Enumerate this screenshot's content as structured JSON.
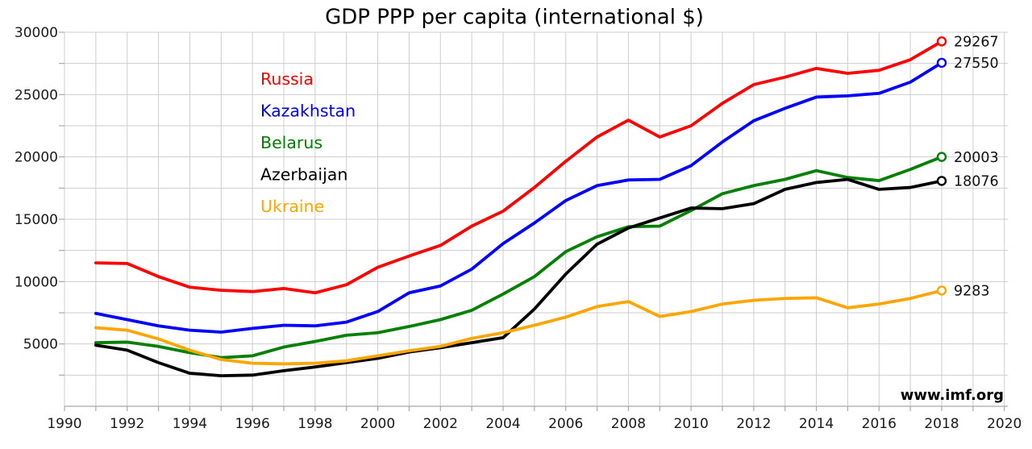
{
  "title": "GDP PPP per capita (international $)",
  "source_watermark": "www.imf.org",
  "style": {
    "gridline_color": "#cdcdcd",
    "axis_color": "#a9a9a9",
    "tick_label_color": "#1a1a1a",
    "end_label_color": "#111111",
    "source_color": "#0000dd",
    "background": "#ffffff"
  },
  "chart_data": {
    "type": "line",
    "title": "GDP PPP per capita (international $)",
    "xlabel": "",
    "ylabel": "",
    "xlim": [
      1990,
      2020
    ],
    "ylim": [
      0,
      30000
    ],
    "x_grid_step": 1,
    "x_label_step": 2,
    "y_grid_step": 2500,
    "y_label_step": 5000,
    "grid": true,
    "legend_position": "upper-left-inside",
    "end_markers": "open-circle",
    "x": [
      1991,
      1992,
      1993,
      1994,
      1995,
      1996,
      1997,
      1998,
      1999,
      2000,
      2001,
      2002,
      2003,
      2004,
      2005,
      2006,
      2007,
      2008,
      2009,
      2010,
      2011,
      2012,
      2013,
      2014,
      2015,
      2016,
      2017,
      2018
    ],
    "series": [
      {
        "name": "Russia",
        "color": "#ff0000",
        "end_label": "29267",
        "values": [
          11500,
          11450,
          10400,
          9550,
          9300,
          9200,
          9450,
          9100,
          9750,
          11150,
          12050,
          12900,
          14450,
          15650,
          17550,
          19650,
          21600,
          22950,
          21600,
          22500,
          24300,
          25800,
          26400,
          27100,
          26700,
          26950,
          27800,
          29267
        ]
      },
      {
        "name": "Kazakhstan",
        "color": "#0000ff",
        "end_label": "27550",
        "values": [
          7450,
          6950,
          6450,
          6100,
          5950,
          6250,
          6500,
          6450,
          6750,
          7600,
          9100,
          9650,
          11000,
          13050,
          14700,
          16500,
          17700,
          18150,
          18200,
          19300,
          21200,
          22900,
          23900,
          24800,
          24900,
          25100,
          26000,
          27550
        ]
      },
      {
        "name": "Belarus",
        "color": "#008000",
        "end_label": "20003",
        "values": [
          5100,
          5150,
          4800,
          4300,
          3900,
          4050,
          4750,
          5200,
          5700,
          5900,
          6400,
          6950,
          7700,
          9000,
          10400,
          12400,
          13600,
          14400,
          14450,
          15700,
          17050,
          17700,
          18200,
          18900,
          18350,
          18100,
          19000,
          20003
        ]
      },
      {
        "name": "Azerbaijan",
        "color": "#000000",
        "end_label": "18076",
        "values": [
          4900,
          4500,
          3500,
          2650,
          2450,
          2500,
          2850,
          3150,
          3500,
          3850,
          4350,
          4700,
          5100,
          5500,
          7800,
          10600,
          13000,
          14300,
          15100,
          15900,
          15850,
          16250,
          17400,
          17950,
          18200,
          17400,
          17550,
          18076
        ]
      },
      {
        "name": "Ukraine",
        "color": "#ffa500",
        "end_label": "9283",
        "values": [
          6300,
          6100,
          5400,
          4500,
          3750,
          3450,
          3400,
          3450,
          3650,
          4050,
          4450,
          4800,
          5450,
          5900,
          6500,
          7150,
          8000,
          8400,
          7200,
          7600,
          8200,
          8500,
          8650,
          8700,
          7900,
          8200,
          8650,
          9283
        ]
      }
    ]
  }
}
